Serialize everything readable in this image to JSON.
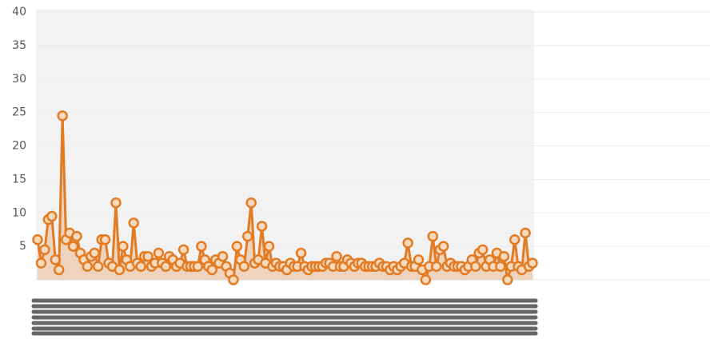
{
  "chart_data": {
    "type": "line",
    "categories": [
      null,
      null,
      null,
      null,
      null,
      null,
      null,
      null,
      null,
      null,
      null,
      null,
      null,
      null,
      null,
      null,
      null,
      null,
      null,
      null,
      null,
      null,
      null,
      null,
      null,
      null,
      null,
      null,
      null,
      null,
      null,
      null,
      null,
      null,
      null,
      null,
      null,
      null,
      null,
      null,
      null,
      null,
      null,
      null,
      null,
      null,
      null,
      null,
      null,
      null,
      null,
      null,
      null,
      null,
      null,
      null,
      null,
      null,
      null,
      null,
      null,
      null,
      null,
      null,
      null,
      null,
      null,
      null,
      null,
      null,
      null,
      null,
      null,
      null,
      null,
      null,
      null,
      null,
      null,
      null,
      null,
      null,
      null,
      null,
      null,
      null,
      null,
      null,
      null,
      null,
      null,
      null,
      null,
      null,
      null,
      null,
      null,
      null,
      null,
      null,
      null,
      null,
      null,
      null,
      null,
      null,
      null,
      null,
      null,
      null,
      null,
      null,
      null,
      null,
      null,
      null,
      null,
      null,
      null,
      null,
      null,
      null,
      null,
      null,
      null,
      null,
      null,
      null,
      null,
      null,
      null,
      null,
      null,
      null,
      null,
      null,
      null,
      null,
      null,
      null
    ],
    "values": [
      6,
      2.5,
      4.5,
      9,
      9.5,
      3,
      1.5,
      24.5,
      6,
      7,
      5,
      6.5,
      4,
      3,
      2,
      3.5,
      4,
      2,
      6,
      6,
      2.5,
      2,
      11.5,
      1.5,
      5,
      3,
      2,
      8.5,
      2.5,
      2,
      3.5,
      3.5,
      2,
      2.5,
      4,
      2.5,
      2,
      3.5,
      3,
      2,
      2.5,
      4.5,
      2,
      2,
      2,
      2,
      5,
      3,
      2,
      1.5,
      3,
      2.5,
      3.5,
      2,
      1,
      0,
      5,
      3,
      2,
      6.5,
      11.5,
      2.5,
      3,
      8,
      2.5,
      5,
      2,
      2.5,
      2,
      2,
      1.5,
      2.5,
      2,
      2,
      4,
      2,
      1.5,
      2,
      2,
      2,
      2,
      2.5,
      2.5,
      2,
      3.5,
      2,
      2,
      3,
      2.5,
      2,
      2.5,
      2.5,
      2,
      2,
      2,
      2,
      2.5,
      2,
      2,
      1.5,
      2,
      1.5,
      2,
      2.5,
      5.5,
      2,
      2,
      3,
      1.5,
      0,
      2,
      6.5,
      2,
      4.5,
      5,
      2,
      2.5,
      2,
      2,
      2,
      1.5,
      2,
      3,
      2,
      4,
      4.5,
      2,
      3,
      2,
      4,
      2,
      3.5,
      0,
      2,
      6,
      2,
      1.5,
      7,
      2,
      2.5
    ],
    "color": "#e27b22",
    "ylim": [
      0,
      40
    ],
    "yticks": [
      5,
      10,
      15,
      20,
      25,
      30,
      35,
      40
    ],
    "grid": true,
    "area": true,
    "markers": true
  }
}
